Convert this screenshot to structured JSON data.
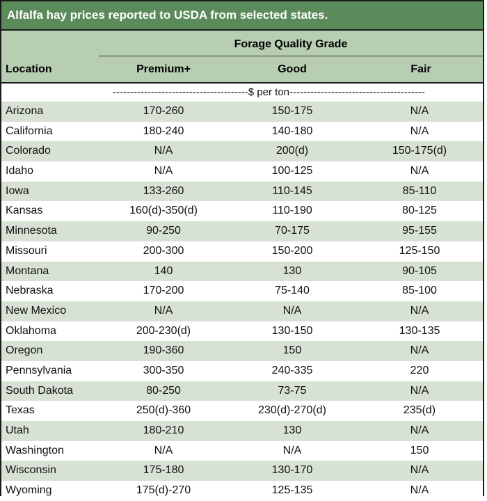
{
  "title": "Alfalfa hay prices reported to USDA from selected states.",
  "header": {
    "group_label": "Forage Quality Grade",
    "location": "Location",
    "premium": "Premium+",
    "good": "Good",
    "fair": "Fair"
  },
  "unit_label": "---------------------------------------$ per ton---------------------------------------",
  "colors": {
    "title_bg": "#5b8a5b",
    "header_bg": "#b7ceb3",
    "stripe": "#d7e2d5"
  },
  "rows": [
    {
      "location": "Arizona",
      "premium": "170-260",
      "good": "150-175",
      "fair": "N/A"
    },
    {
      "location": "California",
      "premium": "180-240",
      "good": "140-180",
      "fair": "N/A"
    },
    {
      "location": "Colorado",
      "premium": "N/A",
      "good": "200(d)",
      "fair": "150-175(d)"
    },
    {
      "location": "Idaho",
      "premium": "N/A",
      "good": "100-125",
      "fair": "N/A"
    },
    {
      "location": "Iowa",
      "premium": "133-260",
      "good": "110-145",
      "fair": "85-110"
    },
    {
      "location": "Kansas",
      "premium": "160(d)-350(d)",
      "good": "110-190",
      "fair": "80-125"
    },
    {
      "location": "Minnesota",
      "premium": "90-250",
      "good": "70-175",
      "fair": "95-155"
    },
    {
      "location": "Missouri",
      "premium": "200-300",
      "good": "150-200",
      "fair": "125-150"
    },
    {
      "location": "Montana",
      "premium": "140",
      "good": "130",
      "fair": "90-105"
    },
    {
      "location": "Nebraska",
      "premium": "170-200",
      "good": "75-140",
      "fair": "85-100"
    },
    {
      "location": "New Mexico",
      "premium": "N/A",
      "good": "N/A",
      "fair": "N/A"
    },
    {
      "location": "Oklahoma",
      "premium": "200-230(d)",
      "good": "130-150",
      "fair": "130-135"
    },
    {
      "location": "Oregon",
      "premium": "190-360",
      "good": "150",
      "fair": "N/A"
    },
    {
      "location": "Pennsylvania",
      "premium": "300-350",
      "good": "240-335",
      "fair": "220"
    },
    {
      "location": "South Dakota",
      "premium": "80-250",
      "good": "73-75",
      "fair": "N/A"
    },
    {
      "location": "Texas",
      "premium": "250(d)-360",
      "good": "230(d)-270(d)",
      "fair": "235(d)"
    },
    {
      "location": "Utah",
      "premium": "180-210",
      "good": "130",
      "fair": "N/A"
    },
    {
      "location": "Washington",
      "premium": "N/A",
      "good": "N/A",
      "fair": "150"
    },
    {
      "location": "Wisconsin",
      "premium": "175-180",
      "good": "130-170",
      "fair": "N/A"
    },
    {
      "location": "Wyoming",
      "premium": "175(d)-270",
      "good": "125-135",
      "fair": "N/A"
    }
  ]
}
